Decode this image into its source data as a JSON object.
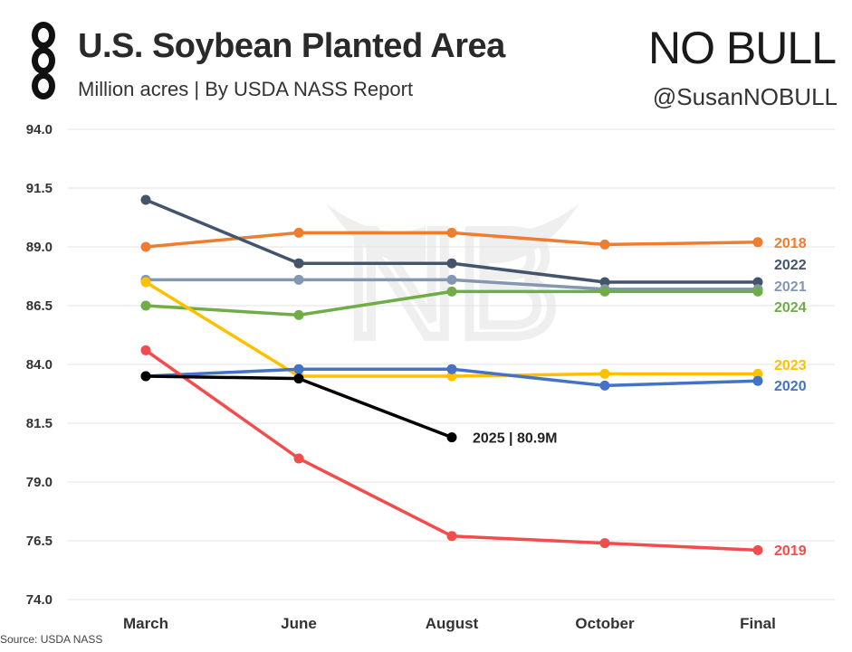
{
  "header": {
    "title": "U.S. Soybean Planted Area",
    "subtitle": "Million acres | By USDA NASS Report",
    "brand": "NO BULL",
    "handle": "@SusanNOBULL"
  },
  "footer": {
    "source": "Source: USDA NASS"
  },
  "chart_data": {
    "type": "line",
    "title": "U.S. Soybean Planted Area",
    "subtitle": "Million acres | By USDA NASS Report",
    "xlabel": "",
    "ylabel": "",
    "categories": [
      "March",
      "June",
      "August",
      "October",
      "Final"
    ],
    "ylim": [
      74.0,
      94.0
    ],
    "yticks": [
      "94.0",
      "91.5",
      "89.0",
      "86.5",
      "84.0",
      "81.5",
      "79.0",
      "76.5",
      "74.0"
    ],
    "grid": true,
    "series": [
      {
        "name": "2018",
        "color": "#ed7d31",
        "values": [
          89.0,
          89.6,
          89.6,
          89.1,
          89.2
        ]
      },
      {
        "name": "2022",
        "color": "#44546a",
        "values": [
          91.0,
          88.3,
          88.3,
          87.5,
          87.5
        ]
      },
      {
        "name": "2021",
        "color": "#8497b0",
        "values": [
          87.6,
          87.6,
          87.6,
          87.2,
          87.2
        ]
      },
      {
        "name": "2024",
        "color": "#70ad47",
        "values": [
          86.5,
          86.1,
          87.1,
          87.1,
          87.1
        ]
      },
      {
        "name": "2023",
        "color": "#ffc000",
        "values": [
          87.5,
          83.5,
          83.5,
          83.6,
          83.6
        ]
      },
      {
        "name": "2020",
        "color": "#4472c4",
        "values": [
          83.5,
          83.8,
          83.8,
          83.1,
          83.3
        ]
      },
      {
        "name": "2019",
        "color": "#f24c4c",
        "values": [
          84.6,
          80.0,
          76.7,
          76.4,
          76.1
        ]
      },
      {
        "name": "2025",
        "color": "#000000",
        "values": [
          83.5,
          83.4,
          80.9,
          null,
          null
        ]
      }
    ],
    "annotation": "2025 | 80.9M"
  }
}
